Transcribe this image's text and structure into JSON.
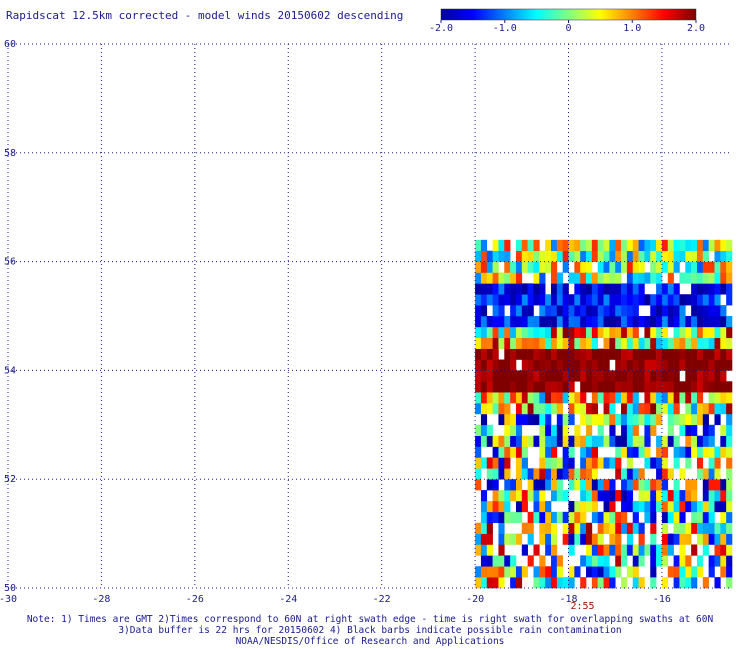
{
  "title": "Rapidscat 12.5km corrected - model winds 20150602 descending",
  "colorbar": {
    "range": [
      -2.0,
      2.0
    ],
    "tick_labels": [
      "-2.0",
      "-1.0",
      "0",
      "1.0",
      "2.0"
    ],
    "tick_values": [
      -2.0,
      -1.0,
      0,
      1.0,
      2.0
    ],
    "colors": [
      "#0000a0",
      "#0000ff",
      "#0080ff",
      "#00ffff",
      "#80ff80",
      "#ffff00",
      "#ff8000",
      "#ff0000",
      "#800000"
    ]
  },
  "notes": {
    "line1": "Note: 1) Times are GMT 2)Times correspond to 60N at right swath edge - time is right swath for overlapping swaths at 60N",
    "line2": "3)Data buffer is 22 hrs for 20150602 4) Black barbs indicate possible rain contamination",
    "line3": "NOAA/NESDIS/Office of Research and Applications"
  },
  "chart_data": {
    "type": "heatmap",
    "title": "Rapidscat 12.5km corrected - model winds 20150602 descending",
    "xlabel": "",
    "ylabel": "",
    "xlim": [
      -30,
      -14.5
    ],
    "ylim": [
      50,
      60
    ],
    "x_ticks": [
      -30,
      -28,
      -26,
      -24,
      -22,
      -20,
      -18,
      -16
    ],
    "x_tick_labels": [
      "-30",
      "-28",
      "-26",
      "-24",
      "-22",
      "-20",
      "-18",
      "-16"
    ],
    "y_ticks": [
      50,
      52,
      54,
      56,
      58,
      60
    ],
    "y_tick_labels": [
      "50",
      "52",
      "54",
      "56",
      "58",
      "60"
    ],
    "grid": true,
    "value_range": [
      -2.0,
      2.0
    ],
    "swath": {
      "lon_min": -20,
      "lon_max": -14.5,
      "lat_min": 50,
      "lat_max": 56.3
    },
    "time_annotation": {
      "label": "2:55",
      "lon": -17.7
    },
    "bands": [
      {
        "lat_min": 55.6,
        "lat_max": 56.3,
        "mean": 0.1,
        "spread": 1.3,
        "missing": 0.08
      },
      {
        "lat_min": 54.8,
        "lat_max": 55.6,
        "mean": -1.5,
        "spread": 0.6,
        "missing": 0.08
      },
      {
        "lat_min": 54.4,
        "lat_max": 54.8,
        "mean": 0.6,
        "spread": 1.4,
        "missing": 0.05
      },
      {
        "lat_min": 53.6,
        "lat_max": 54.4,
        "mean": 2.0,
        "spread": 0.3,
        "missing": 0.03
      },
      {
        "lat_min": 53.3,
        "lat_max": 53.6,
        "mean": 0.5,
        "spread": 1.5,
        "missing": 0.05
      },
      {
        "lat_min": 52.6,
        "lat_max": 53.3,
        "mean": -0.5,
        "spread": 1.6,
        "missing": 0.25
      },
      {
        "lat_min": 52.0,
        "lat_max": 52.6,
        "mean": 0.0,
        "spread": 1.8,
        "missing": 0.3
      },
      {
        "lat_min": 51.2,
        "lat_max": 52.0,
        "mean": -0.2,
        "spread": 1.8,
        "missing": 0.2
      },
      {
        "lat_min": 50.0,
        "lat_max": 51.2,
        "mean": 0.0,
        "spread": 1.9,
        "missing": 0.25
      }
    ]
  }
}
